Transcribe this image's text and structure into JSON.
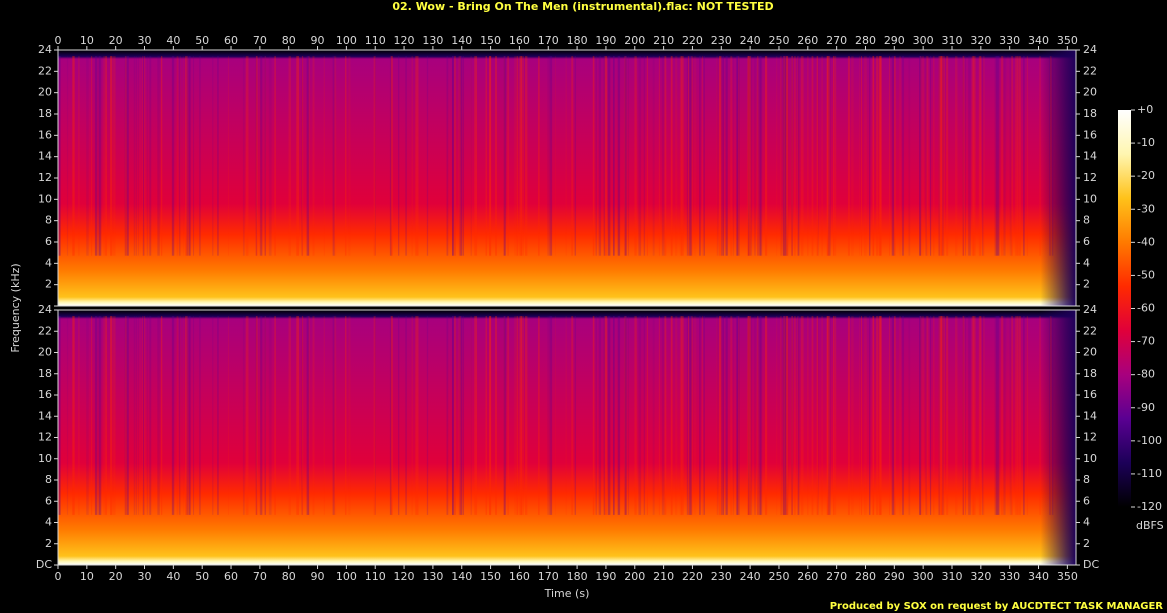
{
  "chart_data": {
    "type": "spectrogram",
    "title": "02. Wow - Bring On The Men (instrumental).flac: NOT TESTED",
    "xlabel": "Time (s)",
    "ylabel": "Frequency (kHz)",
    "xlim": [
      0,
      353
    ],
    "xticks": [
      0,
      10,
      20,
      30,
      40,
      50,
      60,
      70,
      80,
      90,
      100,
      110,
      120,
      130,
      140,
      150,
      160,
      170,
      180,
      190,
      200,
      210,
      220,
      230,
      240,
      250,
      260,
      270,
      280,
      290,
      300,
      310,
      320,
      330,
      340,
      350
    ],
    "ylim": [
      0,
      24
    ],
    "yticks": [
      {
        "value": 0,
        "label": "DC"
      },
      2,
      4,
      6,
      8,
      10,
      12,
      14,
      16,
      18,
      20,
      22,
      24
    ],
    "colorbar": {
      "label": "dBFS",
      "lim": [
        -120,
        0
      ],
      "ticks": [
        {
          "value": 0,
          "label": "+0"
        },
        -10,
        -20,
        -30,
        -40,
        -50,
        -60,
        -70,
        -80,
        -90,
        -100,
        -110,
        -120
      ],
      "colormap": [
        "#000000",
        "#1c0058",
        "#5a0092",
        "#a8007e",
        "#e0003a",
        "#ff2a00",
        "#ff7a00",
        "#ffc21a",
        "#fff6b0",
        "#ffffff"
      ]
    },
    "footer": "Produced by SOX on request by AUCDTECT TASK MANAGER"
  }
}
